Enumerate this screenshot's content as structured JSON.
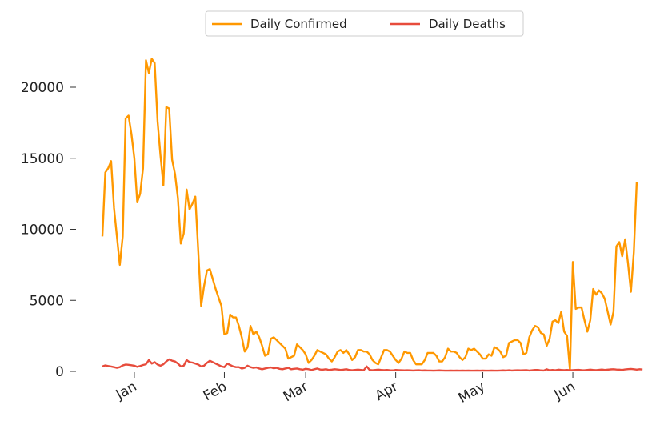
{
  "chart_data": {
    "type": "line",
    "title": "",
    "xlabel": "",
    "ylabel": "",
    "ylim": [
      0,
      23000
    ],
    "yticks": [
      0,
      5000,
      10000,
      15000,
      20000
    ],
    "x_start": "2020-12-21",
    "xticks": [
      {
        "label": "Jan",
        "date": "2021-01-01"
      },
      {
        "label": "Feb",
        "date": "2021-02-01"
      },
      {
        "label": "Mar",
        "date": "2021-03-01"
      },
      {
        "label": "Apr",
        "date": "2021-04-01"
      },
      {
        "label": "May",
        "date": "2021-05-01"
      },
      {
        "label": "Jun",
        "date": "2021-06-01"
      }
    ],
    "grid": false,
    "legend_position": "top-center",
    "series": [
      {
        "name": "Daily Confirmed",
        "color": "#ff9800",
        "values": [
          9500,
          14000,
          14300,
          14800,
          11500,
          9500,
          7500,
          9500,
          17800,
          18000,
          16700,
          15000,
          11900,
          12500,
          14300,
          21900,
          21000,
          22000,
          21700,
          17600,
          15200,
          13100,
          18600,
          18500,
          14900,
          13900,
          12200,
          9000,
          9700,
          12800,
          11400,
          11800,
          12300,
          8500,
          4600,
          6000,
          7100,
          7200,
          6500,
          5800,
          5200,
          4600,
          2600,
          2700,
          4000,
          3800,
          3800,
          3200,
          2400,
          1400,
          1700,
          3200,
          2600,
          2800,
          2400,
          1800,
          1100,
          1200,
          2300,
          2400,
          2200,
          2000,
          1800,
          1600,
          900,
          1000,
          1100,
          1900,
          1700,
          1500,
          1200,
          600,
          800,
          1100,
          1500,
          1400,
          1300,
          1200,
          900,
          700,
          1000,
          1400,
          1500,
          1300,
          1500,
          1200,
          800,
          1000,
          1500,
          1500,
          1400,
          1400,
          1200,
          800,
          600,
          500,
          1000,
          1500,
          1500,
          1400,
          1100,
          800,
          600,
          900,
          1400,
          1300,
          1300,
          800,
          500,
          500,
          500,
          800,
          1300,
          1300,
          1300,
          1100,
          700,
          700,
          1000,
          1600,
          1400,
          1400,
          1300,
          1000,
          800,
          1000,
          1600,
          1500,
          1600,
          1400,
          1200,
          900,
          900,
          1200,
          1100,
          1700,
          1600,
          1400,
          1000,
          1100,
          2000,
          2100,
          2200,
          2200,
          2000,
          1200,
          1300,
          2400,
          2900,
          3200,
          3100,
          2700,
          2600,
          1800,
          2300,
          3500,
          3600,
          3400,
          4200,
          2800,
          2500,
          100,
          7700,
          4400,
          4500,
          4500,
          3600,
          2800,
          3600,
          5800,
          5400,
          5700,
          5500,
          5100,
          4200,
          3300,
          4200,
          8800,
          9100,
          8100,
          9300,
          7600,
          5600,
          8400,
          13300
        ]
      },
      {
        "name": "Daily Deaths",
        "color": "#e74c3c",
        "values": [
          350,
          420,
          380,
          340,
          300,
          250,
          300,
          420,
          480,
          460,
          430,
          400,
          320,
          380,
          450,
          500,
          800,
          550,
          650,
          480,
          400,
          500,
          700,
          850,
          750,
          700,
          550,
          350,
          400,
          800,
          650,
          620,
          550,
          480,
          350,
          400,
          600,
          750,
          650,
          550,
          450,
          350,
          300,
          550,
          450,
          350,
          300,
          300,
          200,
          250,
          400,
          300,
          250,
          280,
          200,
          150,
          200,
          250,
          280,
          220,
          250,
          180,
          150,
          200,
          250,
          150,
          180,
          200,
          150,
          120,
          180,
          150,
          100,
          150,
          200,
          130,
          120,
          150,
          100,
          120,
          150,
          130,
          100,
          120,
          150,
          100,
          80,
          100,
          120,
          100,
          80,
          350,
          100,
          80,
          100,
          120,
          100,
          90,
          100,
          80,
          70,
          100,
          90,
          80,
          70,
          80,
          70,
          60,
          70,
          80,
          60,
          70,
          60,
          60,
          50,
          60,
          70,
          60,
          50,
          50,
          60,
          50,
          60,
          50,
          60,
          50,
          60,
          50,
          50,
          60,
          50,
          60,
          50,
          50,
          60,
          50,
          50,
          60,
          70,
          60,
          80,
          60,
          70,
          80,
          70,
          80,
          90,
          60,
          80,
          100,
          100,
          70,
          60,
          150,
          80,
          100,
          80,
          120,
          100,
          90,
          100,
          80,
          90,
          100,
          110,
          90,
          80,
          100,
          120,
          100,
          90,
          110,
          130,
          100,
          120,
          140,
          150,
          130,
          120,
          100,
          140,
          160,
          170,
          150,
          120,
          150,
          130
        ]
      }
    ]
  }
}
